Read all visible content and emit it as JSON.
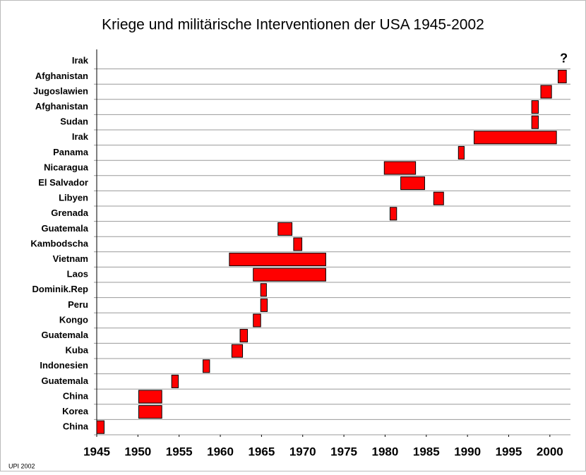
{
  "chart_data": {
    "type": "bar",
    "orientation": "horizontal",
    "title": "Kriege und militärische Interventionen der USA 1945-2002",
    "source": "UPI 2002",
    "categories": [
      "Irak",
      "Afghanistan",
      "Jugoslawien",
      "Afghanistan",
      "Sudan",
      "Irak",
      "Panama",
      "Nicaragua",
      "El Salvador",
      "Libyen",
      "Grenada",
      "Guatemala",
      "Kambodscha",
      "Vietnam",
      "Laos",
      "Dominik.Rep",
      "Peru",
      "Kongo",
      "Guatemala",
      "Kuba",
      "Indonesien",
      "Guatemala",
      "China",
      "Korea",
      "China"
    ],
    "start": [
      null,
      2001,
      1998.9,
      1997.8,
      1997.8,
      1990.8,
      1988.9,
      1979.9,
      1981.9,
      1985.9,
      1980.6,
      1967,
      1968.9,
      1961.1,
      1964,
      1964.9,
      1964.9,
      1964,
      1962.4,
      1961.4,
      1957.9,
      1954.1,
      1950.1,
      1950.1,
      1945
    ],
    "end": [
      null,
      2002,
      2000.2,
      1998.6,
      1998.6,
      2000.8,
      1989.6,
      1983.7,
      1984.8,
      1987.1,
      1981.4,
      1968.7,
      1969.9,
      1972.8,
      1972.8,
      1965.6,
      1965.7,
      1964.9,
      1963.3,
      1962.7,
      1958.7,
      1954.9,
      1952.9,
      1952.9,
      1945.9
    ],
    "color": "#ff0000",
    "annotations": [
      {
        "text": "?",
        "x": 2001.7,
        "category": 0
      }
    ],
    "xlim": [
      1945,
      2002.5
    ],
    "xticks": [
      1945,
      1950,
      1955,
      1960,
      1965,
      1970,
      1975,
      1980,
      1985,
      1990,
      1995,
      2000
    ],
    "grid": true
  }
}
